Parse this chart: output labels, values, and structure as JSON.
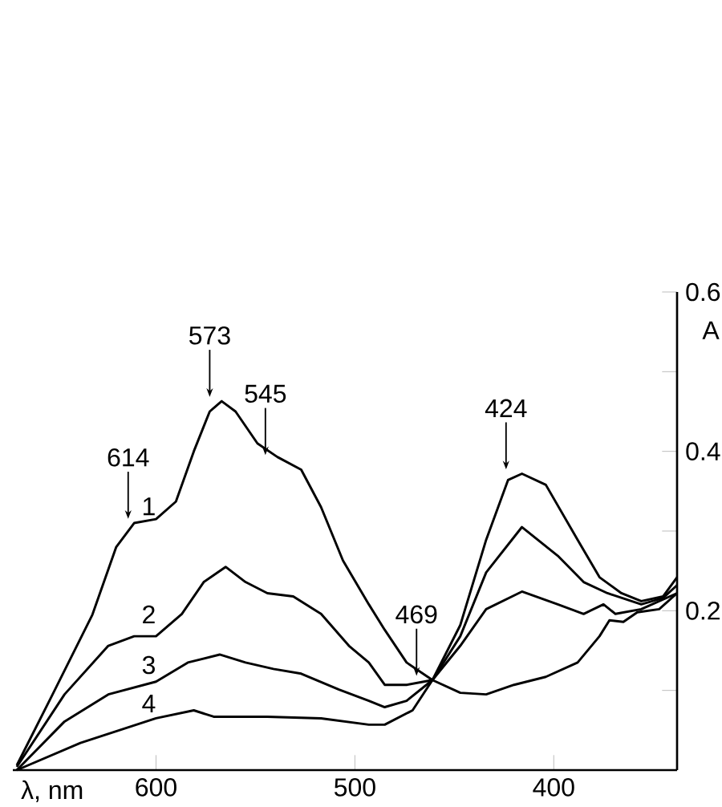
{
  "chart_data": {
    "type": "line",
    "xlabel": "λ, nm",
    "ylabel": "A",
    "xlim": [
      672,
      338
    ],
    "ylim": [
      0,
      0.6
    ],
    "xticks": [
      600,
      500,
      400
    ],
    "yticks": [
      {
        "value": 0.1,
        "label": null
      },
      0.2,
      {
        "value": 0.3,
        "label": null
      },
      0.4,
      {
        "value": 0.5,
        "label": null
      },
      0.6
    ],
    "series": [
      {
        "name": "1",
        "color": "#000000",
        "x": [
          670,
          652,
          632,
          620,
          611,
          600,
          590,
          581,
          573,
          567,
          560,
          549,
          539,
          527,
          517,
          506,
          493,
          485,
          474,
          461,
          447,
          434,
          420,
          404,
          388,
          377,
          372,
          365,
          358,
          347,
          338
        ],
        "values": [
          0.006,
          0.095,
          0.195,
          0.28,
          0.31,
          0.315,
          0.337,
          0.4,
          0.45,
          0.463,
          0.45,
          0.41,
          0.393,
          0.377,
          0.33,
          0.263,
          0.208,
          0.176,
          0.135,
          0.113,
          0.097,
          0.095,
          0.107,
          0.117,
          0.135,
          0.168,
          0.188,
          0.186,
          0.198,
          0.202,
          0.222
        ]
      },
      {
        "name": "2",
        "color": "#000000",
        "x": [
          670,
          646,
          624,
          611,
          600,
          587,
          576,
          565,
          555,
          544,
          531,
          517,
          503,
          493,
          485,
          474,
          461,
          447,
          434,
          416,
          398,
          385,
          373,
          356,
          345,
          338
        ],
        "values": [
          0.004,
          0.095,
          0.156,
          0.168,
          0.168,
          0.196,
          0.236,
          0.255,
          0.236,
          0.222,
          0.218,
          0.196,
          0.156,
          0.135,
          0.107,
          0.107,
          0.113,
          0.168,
          0.248,
          0.305,
          0.269,
          0.236,
          0.222,
          0.208,
          0.216,
          0.232
        ]
      },
      {
        "name": "3",
        "color": "#000000",
        "x": [
          670,
          646,
          624,
          600,
          584,
          568,
          555,
          541,
          527,
          508,
          493,
          485,
          474,
          461,
          447,
          434,
          416,
          398,
          385,
          375,
          369,
          356,
          338
        ],
        "values": [
          0,
          0.061,
          0.095,
          0.111,
          0.135,
          0.145,
          0.135,
          0.127,
          0.121,
          0.101,
          0.087,
          0.079,
          0.087,
          0.113,
          0.156,
          0.202,
          0.224,
          0.208,
          0.196,
          0.208,
          0.196,
          0.202,
          0.222
        ]
      },
      {
        "name": "4",
        "color": "#000000",
        "x": [
          670,
          638,
          600,
          581,
          571,
          544,
          517,
          493,
          485,
          471,
          461,
          447,
          434,
          423,
          416,
          404,
          388,
          377,
          366,
          356,
          345,
          338
        ],
        "values": [
          0,
          0.034,
          0.065,
          0.075,
          0.067,
          0.067,
          0.065,
          0.057,
          0.057,
          0.075,
          0.113,
          0.182,
          0.289,
          0.364,
          0.372,
          0.358,
          0.289,
          0.242,
          0.222,
          0.212,
          0.218,
          0.242
        ]
      }
    ],
    "annotations": [
      {
        "text": "614",
        "x": 614,
        "y": 0.31
      },
      {
        "text": "573",
        "x": 573,
        "y": 0.463
      },
      {
        "text": "545",
        "x": 545,
        "y": 0.39
      },
      {
        "text": "469",
        "x": 469,
        "y": 0.113
      },
      {
        "text": "424",
        "x": 424,
        "y": 0.372
      }
    ]
  }
}
